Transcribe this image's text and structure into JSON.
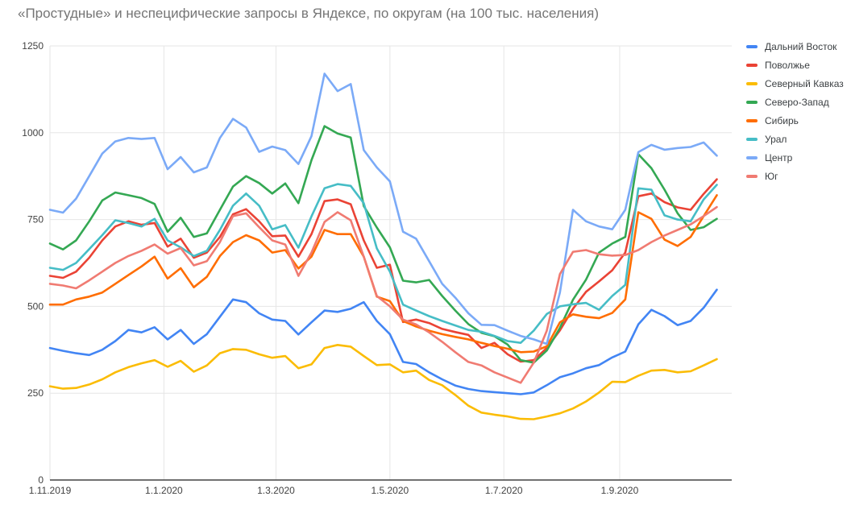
{
  "title": "«Простудные» и неспецифические запросы в Яндексе, по округам (на 100 тыс. населения)",
  "axis": {
    "y_tick_labels": [
      "0",
      "250",
      "500",
      "750",
      "1000",
      "1250"
    ],
    "x_tick_labels": [
      "1.11.2019",
      "1.1.2020",
      "1.3.2020",
      "1.5.2020",
      "1.7.2020",
      "1.9.2020"
    ]
  },
  "colors": {
    "title_text": "#757575",
    "axis_text": "#424242",
    "legend_text": "#3c4043",
    "gridline": "#e6e6e6",
    "baseline": "#424242",
    "background": "#ffffff"
  },
  "chart_data": {
    "type": "line",
    "title": "«Простудные» и неспецифические запросы в Яндексе, по округам (на 100 тыс. населения)",
    "xlabel": "",
    "ylabel": "",
    "ylim": [
      0,
      1250
    ],
    "y_ticks": [
      0,
      250,
      500,
      750,
      1000,
      1250
    ],
    "grid": true,
    "legend_position": "right",
    "x_start_date": "1.11.2019",
    "x_step_days": 7,
    "x_total_span_days": 365,
    "x_tick_labels": [
      "1.11.2019",
      "1.1.2020",
      "1.3.2020",
      "1.5.2020",
      "1.7.2020",
      "1.9.2020"
    ],
    "x_tick_day_offsets": [
      0,
      61,
      121,
      182,
      243,
      305
    ],
    "x_weekly_dates": [
      "1.11.2019",
      "8.11.2019",
      "15.11.2019",
      "22.11.2019",
      "29.11.2019",
      "6.12.2019",
      "13.12.2019",
      "20.12.2019",
      "27.12.2019",
      "3.1.2020",
      "10.1.2020",
      "17.1.2020",
      "24.1.2020",
      "31.1.2020",
      "7.2.2020",
      "14.2.2020",
      "21.2.2020",
      "28.2.2020",
      "6.3.2020",
      "13.3.2020",
      "20.3.2020",
      "27.3.2020",
      "3.4.2020",
      "10.4.2020",
      "17.4.2020",
      "24.4.2020",
      "1.5.2020",
      "8.5.2020",
      "15.5.2020",
      "22.5.2020",
      "29.5.2020",
      "5.6.2020",
      "12.6.2020",
      "19.6.2020",
      "26.6.2020",
      "3.7.2020",
      "10.7.2020",
      "17.7.2020",
      "24.7.2020",
      "31.7.2020",
      "7.8.2020",
      "14.8.2020",
      "21.8.2020",
      "28.8.2020",
      "4.9.2020",
      "11.9.2020",
      "18.9.2020",
      "25.9.2020",
      "2.10.2020",
      "9.10.2020",
      "16.10.2020",
      "23.10.2020"
    ],
    "series": [
      {
        "name": "Дальний Восток",
        "color": "#4285F4",
        "values": [
          380,
          372,
          365,
          360,
          375,
          400,
          432,
          425,
          440,
          405,
          432,
          392,
          420,
          470,
          520,
          512,
          480,
          462,
          458,
          419,
          454,
          488,
          484,
          493,
          512,
          458,
          420,
          340,
          334,
          310,
          290,
          272,
          262,
          256,
          253,
          250,
          247,
          252,
          273,
          296,
          307,
          322,
          331,
          353,
          370,
          448,
          490,
          472,
          446,
          458,
          496,
          548
        ]
      },
      {
        "name": "Поволжье",
        "color": "#EA4335",
        "values": [
          588,
          582,
          600,
          640,
          690,
          730,
          745,
          735,
          740,
          672,
          695,
          640,
          655,
          700,
          765,
          780,
          745,
          702,
          704,
          643,
          708,
          803,
          808,
          794,
          690,
          611,
          620,
          455,
          462,
          452,
          435,
          426,
          418,
          380,
          395,
          362,
          341,
          345,
          380,
          431,
          493,
          542,
          572,
          604,
          655,
          817,
          825,
          800,
          785,
          778,
          824,
          866
        ]
      },
      {
        "name": "Северный Кавказ",
        "color": "#FBBC04",
        "values": [
          270,
          263,
          265,
          275,
          290,
          310,
          325,
          336,
          345,
          326,
          343,
          312,
          330,
          365,
          377,
          375,
          362,
          352,
          357,
          322,
          333,
          380,
          389,
          384,
          357,
          331,
          333,
          310,
          315,
          288,
          273,
          245,
          214,
          194,
          188,
          183,
          176,
          175,
          183,
          192,
          206,
          226,
          252,
          283,
          282,
          300,
          315,
          317,
          310,
          313,
          330,
          348
        ]
      },
      {
        "name": "Северо-Запад",
        "color": "#34A853",
        "values": [
          681,
          664,
          690,
          745,
          805,
          828,
          820,
          812,
          795,
          715,
          755,
          700,
          710,
          778,
          845,
          875,
          855,
          825,
          854,
          797,
          921,
          1019,
          998,
          986,
          789,
          727,
          670,
          574,
          569,
          576,
          530,
          488,
          449,
          424,
          414,
          390,
          345,
          338,
          373,
          438,
          519,
          577,
          655,
          681,
          700,
          938,
          898,
          836,
          768,
          720,
          728,
          752
        ]
      },
      {
        "name": "Сибирь",
        "color": "#FF6D01",
        "values": [
          505,
          505,
          520,
          528,
          540,
          565,
          590,
          615,
          643,
          580,
          610,
          555,
          585,
          645,
          685,
          705,
          690,
          655,
          662,
          609,
          643,
          720,
          708,
          708,
          643,
          528,
          515,
          458,
          442,
          430,
          420,
          412,
          405,
          395,
          386,
          378,
          368,
          370,
          385,
          454,
          477,
          470,
          466,
          481,
          520,
          771,
          752,
          692,
          674,
          700,
          760,
          820
        ]
      },
      {
        "name": "Урал",
        "color": "#46BDC6",
        "values": [
          611,
          605,
          625,
          665,
          705,
          748,
          740,
          730,
          752,
          690,
          670,
          645,
          660,
          720,
          790,
          825,
          790,
          722,
          734,
          669,
          759,
          840,
          852,
          847,
          797,
          667,
          600,
          505,
          488,
          472,
          458,
          445,
          432,
          427,
          415,
          400,
          395,
          430,
          478,
          500,
          506,
          510,
          490,
          530,
          562,
          840,
          836,
          762,
          750,
          745,
          808,
          850
        ]
      },
      {
        "name": "Центр",
        "color": "#7BAAF7",
        "values": [
          778,
          770,
          810,
          875,
          940,
          975,
          985,
          982,
          985,
          895,
          930,
          886,
          900,
          985,
          1040,
          1015,
          945,
          960,
          950,
          910,
          990,
          1170,
          1120,
          1140,
          950,
          900,
          860,
          715,
          695,
          630,
          565,
          525,
          480,
          447,
          446,
          430,
          415,
          405,
          392,
          540,
          778,
          745,
          730,
          722,
          778,
          944,
          965,
          951,
          956,
          959,
          972,
          934
        ]
      },
      {
        "name": "Юг",
        "color": "#F07B72",
        "values": [
          565,
          560,
          552,
          575,
          600,
          625,
          645,
          660,
          678,
          652,
          668,
          618,
          630,
          685,
          760,
          768,
          728,
          690,
          678,
          588,
          655,
          743,
          771,
          748,
          643,
          530,
          500,
          462,
          448,
          425,
          398,
          368,
          340,
          330,
          310,
          295,
          280,
          338,
          430,
          593,
          657,
          662,
          650,
          646,
          648,
          662,
          685,
          704,
          720,
          736,
          760,
          786
        ]
      }
    ]
  }
}
